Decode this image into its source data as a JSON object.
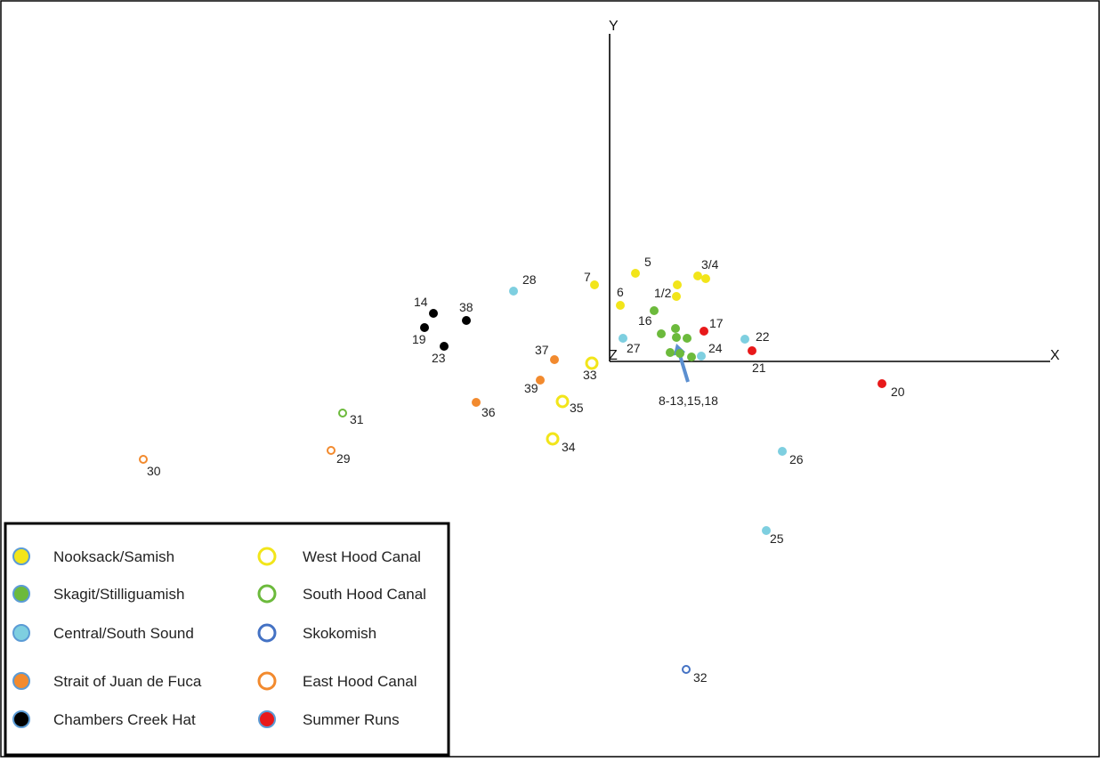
{
  "chart_data": {
    "type": "scatter",
    "title": "",
    "xlabel": "X",
    "ylabel": "Y",
    "origin_label": "Z",
    "xlim": [
      -5.3,
      4.9
    ],
    "ylim": [
      -4.0,
      3.3
    ],
    "grid": false,
    "legend_position": "bottom-left",
    "arrow_annotation": {
      "label": "8-13,15,18",
      "tip": [
        0.75,
        0.2
      ],
      "tail": [
        0.88,
        -0.23
      ]
    },
    "groups": [
      {
        "name": "Nooksack/Samish",
        "marker": "filled",
        "color": "#f2e51a",
        "edge": "#5b9bd5"
      },
      {
        "name": "Skagit/Stilliguamish",
        "marker": "filled",
        "color": "#6cba3c",
        "edge": "#5b9bd5"
      },
      {
        "name": "Central/South Sound",
        "marker": "filled",
        "color": "#7ecfe0",
        "edge": "#5b9bd5"
      },
      {
        "name": "Strait of Juan de Fuca",
        "marker": "filled",
        "color": "#f28a2e",
        "edge": "#5b9bd5"
      },
      {
        "name": "Chambers Creek Hat",
        "marker": "filled",
        "color": "#000000",
        "edge": "#5b9bd5"
      },
      {
        "name": "West Hood Canal",
        "marker": "open",
        "color": "#f2e51a"
      },
      {
        "name": "South Hood Canal",
        "marker": "open",
        "color": "#6cba3c"
      },
      {
        "name": "Skokomish",
        "marker": "open",
        "color": "#4472c4"
      },
      {
        "name": "East Hood Canal",
        "marker": "open",
        "color": "#f28a2e"
      },
      {
        "name": "Summer Runs",
        "marker": "filled",
        "color": "#e8191a",
        "edge": "#5b9bd5"
      }
    ],
    "points": [
      {
        "label": "5",
        "group": "Nooksack/Samish",
        "x": 0.29,
        "y": 0.99
      },
      {
        "label": "3/4",
        "group": "Nooksack/Samish",
        "x": 0.99,
        "y": 0.96
      },
      {
        "label": "",
        "group": "Nooksack/Samish",
        "x": 1.08,
        "y": 0.93
      },
      {
        "label": "1/2",
        "group": "Nooksack/Samish",
        "x": 0.76,
        "y": 0.86
      },
      {
        "label": "",
        "group": "Nooksack/Samish",
        "x": 0.75,
        "y": 0.73
      },
      {
        "label": "7",
        "group": "Nooksack/Samish",
        "x": -0.17,
        "y": 0.86
      },
      {
        "label": "6",
        "group": "Nooksack/Samish",
        "x": 0.12,
        "y": 0.63
      },
      {
        "label": "16",
        "group": "Skagit/Stilliguamish",
        "x": 0.5,
        "y": 0.57
      },
      {
        "label": "",
        "group": "Skagit/Stilliguamish",
        "x": 0.74,
        "y": 0.37
      },
      {
        "label": "",
        "group": "Skagit/Stilliguamish",
        "x": 0.58,
        "y": 0.31
      },
      {
        "label": "",
        "group": "Skagit/Stilliguamish",
        "x": 0.75,
        "y": 0.27
      },
      {
        "label": "",
        "group": "Skagit/Stilliguamish",
        "x": 0.87,
        "y": 0.26
      },
      {
        "label": "",
        "group": "Skagit/Stilliguamish",
        "x": 0.68,
        "y": 0.1
      },
      {
        "label": "",
        "group": "Skagit/Stilliguamish",
        "x": 0.79,
        "y": 0.09
      },
      {
        "label": "",
        "group": "Skagit/Stilliguamish",
        "x": 0.92,
        "y": 0.05
      },
      {
        "label": "28",
        "group": "Central/South Sound",
        "x": -1.08,
        "y": 0.79
      },
      {
        "label": "27",
        "group": "Central/South Sound",
        "x": 0.15,
        "y": 0.26
      },
      {
        "label": "22",
        "group": "Central/South Sound",
        "x": 1.52,
        "y": 0.25
      },
      {
        "label": "24",
        "group": "Central/South Sound",
        "x": 1.03,
        "y": 0.06
      },
      {
        "label": "26",
        "group": "Central/South Sound",
        "x": 1.94,
        "y": -1.01
      },
      {
        "label": "25",
        "group": "Central/South Sound",
        "x": 1.76,
        "y": -1.9
      },
      {
        "label": "37",
        "group": "Strait of Juan de Fuca",
        "x": -0.62,
        "y": 0.02
      },
      {
        "label": "39",
        "group": "Strait of Juan de Fuca",
        "x": -0.78,
        "y": -0.21
      },
      {
        "label": "36",
        "group": "Strait of Juan de Fuca",
        "x": -1.5,
        "y": -0.46
      },
      {
        "label": "14",
        "group": "Chambers Creek Hat",
        "x": -1.98,
        "y": 0.54
      },
      {
        "label": "38",
        "group": "Chambers Creek Hat",
        "x": -1.61,
        "y": 0.46
      },
      {
        "label": "19",
        "group": "Chambers Creek Hat",
        "x": -2.08,
        "y": 0.38
      },
      {
        "label": "23",
        "group": "Chambers Creek Hat",
        "x": -1.86,
        "y": 0.17
      },
      {
        "label": "33",
        "group": "West Hood Canal",
        "x": -0.2,
        "y": -0.02
      },
      {
        "label": "35",
        "group": "West Hood Canal",
        "x": -0.53,
        "y": -0.45
      },
      {
        "label": "34",
        "group": "West Hood Canal",
        "x": -0.64,
        "y": -0.87
      },
      {
        "label": "31",
        "group": "South Hood Canal",
        "x": -3.0,
        "y": -0.58
      },
      {
        "label": "32",
        "group": "Skokomish",
        "x": 0.86,
        "y": -3.46
      },
      {
        "label": "29",
        "group": "East Hood Canal",
        "x": -3.13,
        "y": -1.0
      },
      {
        "label": "30",
        "group": "East Hood Canal",
        "x": -5.24,
        "y": -1.1
      },
      {
        "label": "17",
        "group": "Summer Runs",
        "x": 1.06,
        "y": 0.34
      },
      {
        "label": "21",
        "group": "Summer Runs",
        "x": 1.6,
        "y": 0.12
      },
      {
        "label": "20",
        "group": "Summer Runs",
        "x": 3.06,
        "y": -0.25
      }
    ]
  }
}
